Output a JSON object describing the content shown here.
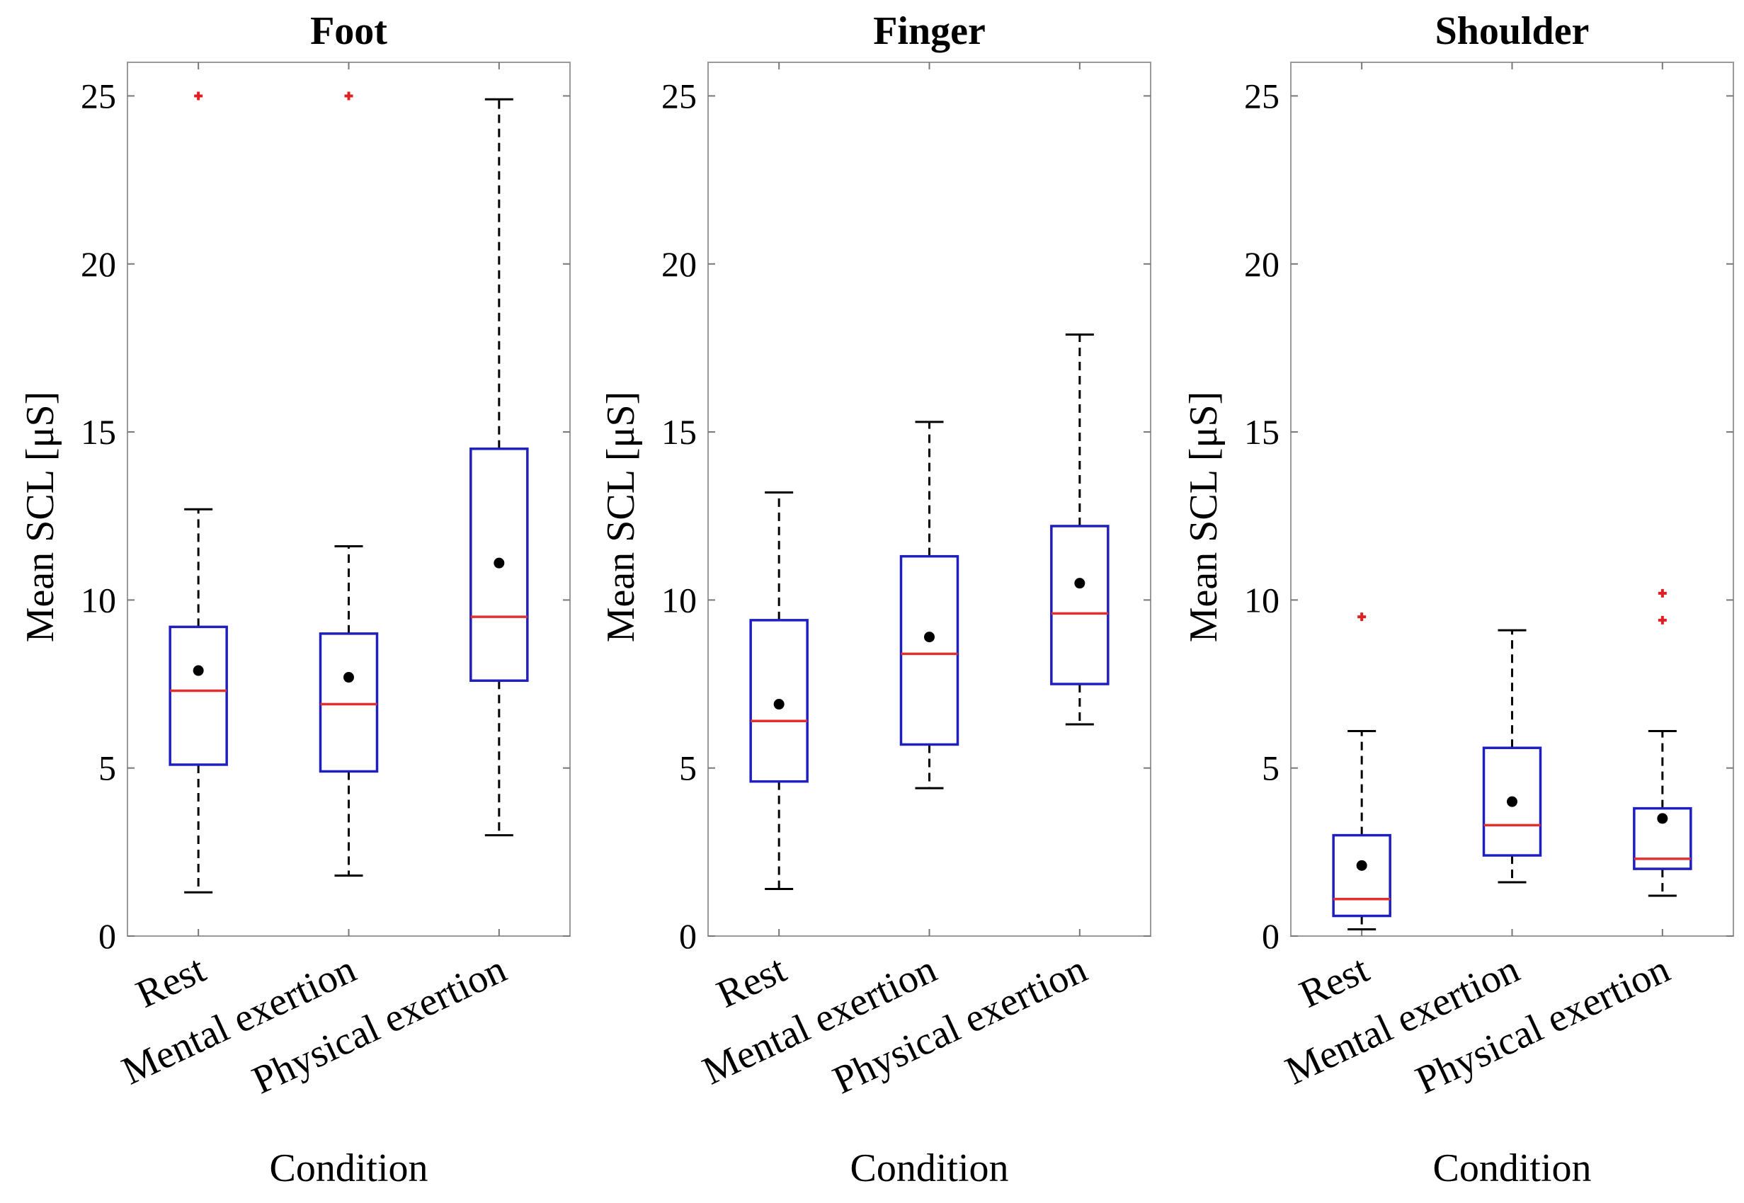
{
  "figure": {
    "panels": [
      {
        "title": "Foot",
        "xlabel": "Condition",
        "ylabel": "Mean SCL [μS]"
      },
      {
        "title": "Finger",
        "xlabel": "Condition",
        "ylabel": "Mean SCL [μS]"
      },
      {
        "title": "Shoulder",
        "xlabel": "Condition",
        "ylabel": "Mean SCL [μS]"
      }
    ]
  },
  "colors": {
    "box": "#1f1fbf",
    "median": "#e03030",
    "outlier": "#e02020",
    "mean": "#000000",
    "whisker": "#000000"
  },
  "chart_data": [
    {
      "type": "box",
      "title": "Foot",
      "xlabel": "Condition",
      "ylabel": "Mean SCL [μS]",
      "ylim": [
        0,
        26
      ],
      "yticks": [
        0,
        5,
        10,
        15,
        20,
        25
      ],
      "categories": [
        "Rest",
        "Mental exertion",
        "Physical exertion"
      ],
      "boxes": [
        {
          "whisker_low": 1.3,
          "q1": 5.1,
          "median": 7.3,
          "q3": 9.2,
          "whisker_high": 12.7,
          "mean": 7.9,
          "outliers": [
            25
          ]
        },
        {
          "whisker_low": 1.8,
          "q1": 4.9,
          "median": 6.9,
          "q3": 9.0,
          "whisker_high": 11.6,
          "mean": 7.7,
          "outliers": [
            25
          ]
        },
        {
          "whisker_low": 3.0,
          "q1": 7.6,
          "median": 9.5,
          "q3": 14.5,
          "whisker_high": 24.9,
          "mean": 11.1,
          "outliers": []
        }
      ]
    },
    {
      "type": "box",
      "title": "Finger",
      "xlabel": "Condition",
      "ylabel": "Mean SCL [μS]",
      "ylim": [
        0,
        26
      ],
      "yticks": [
        0,
        5,
        10,
        15,
        20,
        25
      ],
      "categories": [
        "Rest",
        "Mental exertion",
        "Physical exertion"
      ],
      "boxes": [
        {
          "whisker_low": 1.4,
          "q1": 4.6,
          "median": 6.4,
          "q3": 9.4,
          "whisker_high": 13.2,
          "mean": 6.9,
          "outliers": []
        },
        {
          "whisker_low": 4.4,
          "q1": 5.7,
          "median": 8.4,
          "q3": 11.3,
          "whisker_high": 15.3,
          "mean": 8.9,
          "outliers": []
        },
        {
          "whisker_low": 6.3,
          "q1": 7.5,
          "median": 9.6,
          "q3": 12.2,
          "whisker_high": 17.9,
          "mean": 10.5,
          "outliers": []
        }
      ]
    },
    {
      "type": "box",
      "title": "Shoulder",
      "xlabel": "Condition",
      "ylabel": "Mean SCL [μS]",
      "ylim": [
        0,
        26
      ],
      "yticks": [
        0,
        5,
        10,
        15,
        20,
        25
      ],
      "categories": [
        "Rest",
        "Mental exertion",
        "Physical exertion"
      ],
      "boxes": [
        {
          "whisker_low": 0.2,
          "q1": 0.6,
          "median": 1.1,
          "q3": 3.0,
          "whisker_high": 6.1,
          "mean": 2.1,
          "outliers": [
            9.5
          ]
        },
        {
          "whisker_low": 1.6,
          "q1": 2.4,
          "median": 3.3,
          "q3": 5.6,
          "whisker_high": 9.1,
          "mean": 4.0,
          "outliers": []
        },
        {
          "whisker_low": 1.2,
          "q1": 2.0,
          "median": 2.3,
          "q3": 3.8,
          "whisker_high": 6.1,
          "mean": 3.5,
          "outliers": [
            9.4,
            10.2
          ]
        }
      ]
    }
  ]
}
